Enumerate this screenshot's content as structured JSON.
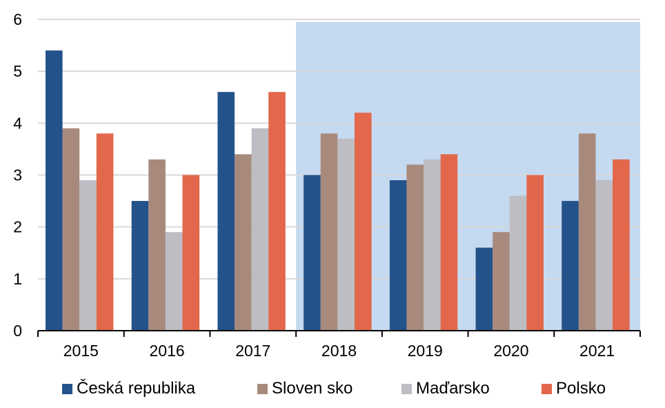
{
  "chart_data": {
    "type": "bar",
    "categories": [
      "2015",
      "2016",
      "2017",
      "2018",
      "2019",
      "2020",
      "2021"
    ],
    "series": [
      {
        "name": "Česká republika",
        "color": "#24528A",
        "values": [
          5.4,
          2.5,
          4.6,
          3.0,
          2.9,
          1.6,
          2.5
        ]
      },
      {
        "name": "Sloven sko",
        "color": "#A88A7C",
        "values": [
          3.9,
          3.3,
          3.4,
          3.8,
          3.2,
          1.9,
          3.8
        ]
      },
      {
        "name": "Maďarsko",
        "color": "#BDBDC3",
        "values": [
          2.9,
          1.9,
          3.9,
          3.7,
          3.3,
          2.6,
          2.9
        ]
      },
      {
        "name": "Polsko",
        "color": "#E2674B",
        "values": [
          3.8,
          3.0,
          4.6,
          4.2,
          3.4,
          3.0,
          3.3
        ]
      }
    ],
    "yticks": [
      "0",
      "1",
      "2",
      "3",
      "4",
      "5",
      "6"
    ],
    "ylim": [
      0,
      6
    ],
    "grid": true,
    "legend_position": "bottom",
    "highlight_from_category": "2018",
    "highlight_color": "#C5D9F0"
  }
}
